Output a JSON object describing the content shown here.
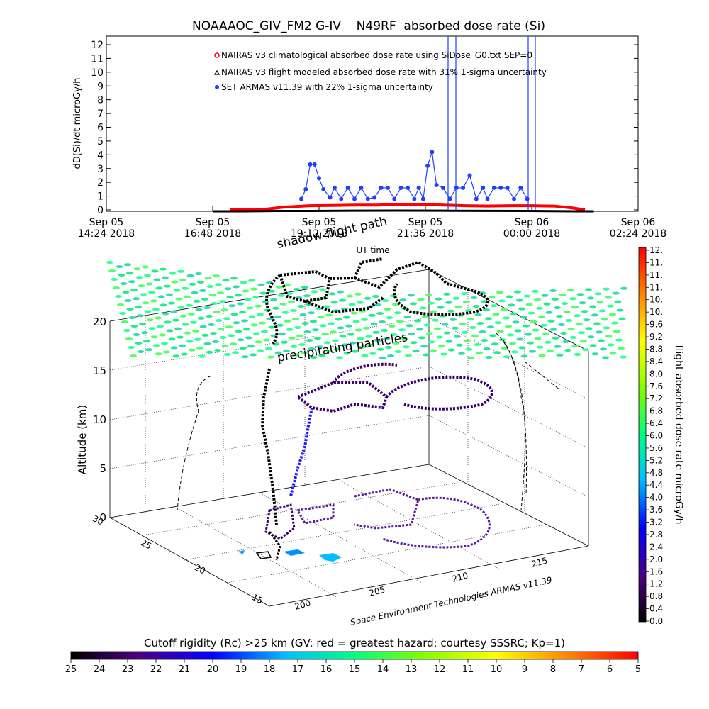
{
  "colors": {
    "nairas_clim": "#ff0000",
    "nairas_flight": "#000000",
    "armas": "#1f3fff"
  },
  "chart_data": [
    {
      "type": "line",
      "title": "NOAAAOC_GIV_FM2 G-IV    N49RF  absorbed dose rate (Si)",
      "ylabel": "dD(Si)/dt microGy/h",
      "xlabel": "UT time",
      "ylim": [
        0,
        12
      ],
      "yticks": [
        "0",
        "1",
        "2",
        "3",
        "4",
        "5",
        "6",
        "7",
        "8",
        "9",
        "10",
        "11",
        "12"
      ],
      "xticks": [
        {
          "line1": "Sep 05",
          "line2": "14:24 2018"
        },
        {
          "line1": "Sep 05",
          "line2": "16:48 2018"
        },
        {
          "line1": "Sep 05",
          "line2": "19:12 2018"
        },
        {
          "line1": "Sep 05",
          "line2": "21:36 2018"
        },
        {
          "line1": "Sep 06",
          "line2": "00:00 2018"
        },
        {
          "line1": "Sep 06",
          "line2": "02:24 2018"
        }
      ],
      "xlim_hours": [
        14.4,
        26.4
      ],
      "legend_placement": "top-center",
      "legend": [
        "NAIRAS v3 climatological absorbed dose rate using SiDose_G0.txt SEP=0",
        "NAIRAS v3 flight modeled absorbed dose rate with 31% 1-sigma uncertainty",
        "SET ARMAS v11.39 with 22% 1-sigma uncertainty"
      ],
      "series": [
        {
          "name": "NAIRAS v3 climatological absorbed dose rate using SiDose_G0.txt SEP=0",
          "x_hours": [
            17.2,
            18.0,
            18.4,
            19.0,
            19.5,
            20.0,
            20.5,
            21.0,
            21.5,
            22.0,
            22.5,
            23.0,
            23.5,
            24.0,
            24.5,
            24.9,
            25.2
          ],
          "values": [
            0.0,
            0.05,
            0.2,
            0.3,
            0.32,
            0.35,
            0.35,
            0.4,
            0.4,
            0.35,
            0.3,
            0.28,
            0.3,
            0.3,
            0.28,
            0.15,
            0.0
          ]
        },
        {
          "name": "NAIRAS v3 flight modeled absorbed dose rate with 31% 1-sigma uncertainty",
          "x_hours": [
            16.8,
            17.5,
            18.2,
            19.0,
            20.0,
            21.0,
            22.0,
            23.0,
            24.0,
            25.0,
            25.4
          ],
          "values": [
            -0.1,
            -0.1,
            -0.08,
            -0.08,
            -0.06,
            -0.05,
            -0.06,
            -0.07,
            -0.08,
            -0.1,
            -0.1
          ]
        },
        {
          "name": "SET ARMAS v11.39 with 22% 1-sigma uncertainty",
          "x_hours": [
            18.8,
            18.9,
            19.0,
            19.1,
            19.2,
            19.3,
            19.45,
            19.55,
            19.7,
            19.85,
            20.0,
            20.15,
            20.3,
            20.45,
            20.6,
            20.75,
            20.9,
            21.05,
            21.2,
            21.35,
            21.45,
            21.55,
            21.65,
            21.75,
            21.85,
            22.0,
            22.15,
            22.3,
            22.45,
            22.6,
            22.75,
            22.9,
            23.0,
            23.15,
            23.3,
            23.45,
            23.6,
            23.75,
            23.9
          ],
          "values": [
            0.8,
            1.5,
            3.3,
            3.3,
            2.3,
            1.5,
            0.9,
            1.6,
            0.8,
            1.6,
            0.8,
            1.6,
            0.8,
            0.9,
            1.6,
            1.6,
            0.8,
            1.6,
            1.6,
            0.8,
            1.6,
            0.8,
            3.2,
            4.2,
            1.8,
            1.6,
            0.8,
            1.6,
            1.6,
            2.5,
            0.8,
            1.6,
            0.8,
            1.6,
            1.6,
            1.6,
            0.8,
            1.6,
            0.8
          ]
        }
      ]
    },
    {
      "type": "scatter",
      "title_labels": [
        "shadow flight path",
        "precipitating particles"
      ],
      "ylabel": "Altitude (km)",
      "z_ticks": [
        "0",
        "5",
        "10",
        "15",
        "20"
      ],
      "lat_ticks": [
        "15",
        "20",
        "25",
        "30"
      ],
      "lon_ticks": [
        "200",
        "205",
        "210",
        "215"
      ],
      "credit": "Space Environment Technologies ARMAS v11.39",
      "colorbar": {
        "label": "flight absorbed dose rate microGy/h",
        "ticks": [
          "0.0",
          "0.4",
          "0.8",
          "1.2",
          "1.6",
          "2.0",
          "2.4",
          "2.8",
          "3.2",
          "3.6",
          "4.0",
          "4.4",
          "4.8",
          "5.2",
          "5.6",
          "6.0",
          "6.4",
          "6.8",
          "7.2",
          "7.6",
          "8.0",
          "8.4",
          "8.8",
          "9.2",
          "9.6",
          "10.",
          "10.",
          "11.",
          "11.",
          "11.",
          "12."
        ]
      },
      "cutoff_bar": {
        "label": "Cutoff rigidity (Rc) >25 km (GV: red = greatest hazard; courtesy SSSRC; Kp=1)",
        "ticks": [
          "25",
          "24",
          "23",
          "22",
          "21",
          "20",
          "19",
          "18",
          "17",
          "16",
          "15",
          "14",
          "13",
          "12",
          "11",
          "10",
          "9",
          "8",
          "7",
          "6",
          "5"
        ]
      }
    }
  ]
}
